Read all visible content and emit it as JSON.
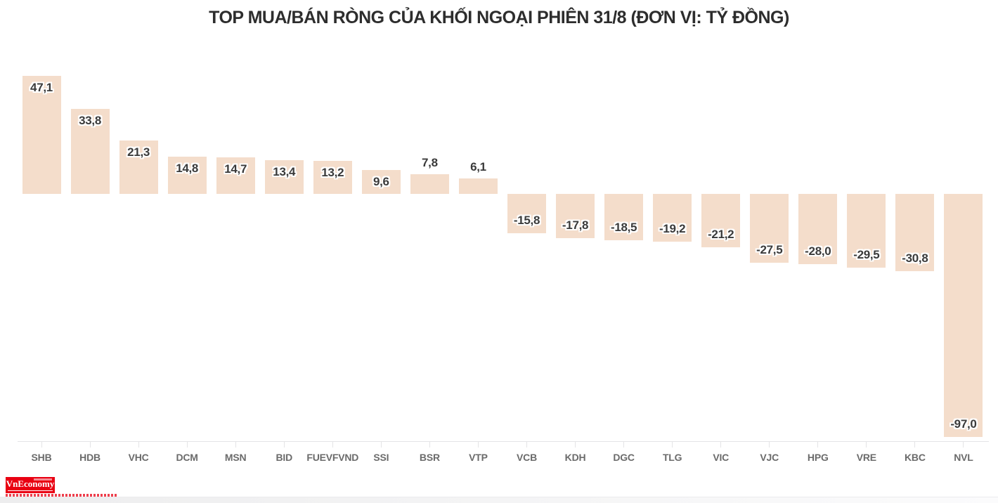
{
  "chart_data": {
    "type": "bar",
    "title": "TOP MUA/BÁN RÒNG CỦA KHỐI NGOẠI PHIÊN 31/8 (ĐƠN VỊ: TỶ ĐỒNG)",
    "categories": [
      "SHB",
      "HDB",
      "VHC",
      "DCM",
      "MSN",
      "BID",
      "FUEVFVND",
      "SSI",
      "BSR",
      "VTP",
      "VCB",
      "KDH",
      "DGC",
      "TLG",
      "VIC",
      "VJC",
      "HPG",
      "VRE",
      "KBC",
      "NVL"
    ],
    "values": [
      47.1,
      33.8,
      21.3,
      14.8,
      14.7,
      13.4,
      13.2,
      9.6,
      7.8,
      6.1,
      -15.8,
      -17.8,
      -18.5,
      -19.2,
      -21.2,
      -27.5,
      -28.0,
      -29.5,
      -30.8,
      -97.0
    ],
    "value_labels": [
      "47,1",
      "33,8",
      "21,3",
      "14,8",
      "14,7",
      "13,4",
      "13,2",
      "9,6",
      "7,8",
      "6,1",
      "-15,8",
      "-17,8",
      "-18,5",
      "-19,2",
      "-21,2",
      "-27,5",
      "-28,0",
      "-29,5",
      "-30,8",
      "-97,0"
    ],
    "xlabel": "",
    "ylabel": "",
    "ylim": [
      -100,
      50
    ],
    "grid": false,
    "legend": "none",
    "colors": {
      "bar_fill": "#f4ddcb",
      "value_label": "#3a3a3a",
      "value_label_halo": "#ffffff",
      "title": "#2d2d2d",
      "category_label": "#6b6b6b",
      "axis_line": "#e4e4e6"
    }
  },
  "footer": {
    "logo_text": "VnEconomy",
    "logo_background": "#e90012",
    "logo_text_color": "#ffffff"
  }
}
